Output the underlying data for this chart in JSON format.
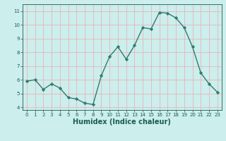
{
  "x": [
    0,
    1,
    2,
    3,
    4,
    5,
    6,
    7,
    8,
    9,
    10,
    11,
    12,
    13,
    14,
    15,
    16,
    17,
    18,
    19,
    20,
    21,
    22,
    23
  ],
  "y": [
    5.9,
    6.0,
    5.3,
    5.7,
    5.4,
    4.7,
    4.6,
    4.3,
    4.2,
    6.3,
    7.7,
    8.4,
    7.5,
    8.5,
    9.8,
    9.7,
    10.9,
    10.85,
    10.5,
    9.8,
    8.4,
    6.5,
    5.7,
    5.1
  ],
  "line_color": "#2e7d6e",
  "marker": "D",
  "marker_size": 2.2,
  "line_width": 1.0,
  "xlabel": "Humidex (Indice chaleur)",
  "xlabel_fontsize": 7,
  "bg_color": "#cceeed",
  "grid_color": "#e8b4b8",
  "tick_color": "#1a5c50",
  "label_color": "#1a5c50",
  "xlim": [
    -0.5,
    23.5
  ],
  "ylim": [
    3.8,
    11.5
  ],
  "yticks": [
    4,
    5,
    6,
    7,
    8,
    9,
    10,
    11
  ],
  "xticks": [
    0,
    1,
    2,
    3,
    4,
    5,
    6,
    7,
    8,
    9,
    10,
    11,
    12,
    13,
    14,
    15,
    16,
    17,
    18,
    19,
    20,
    21,
    22,
    23
  ]
}
